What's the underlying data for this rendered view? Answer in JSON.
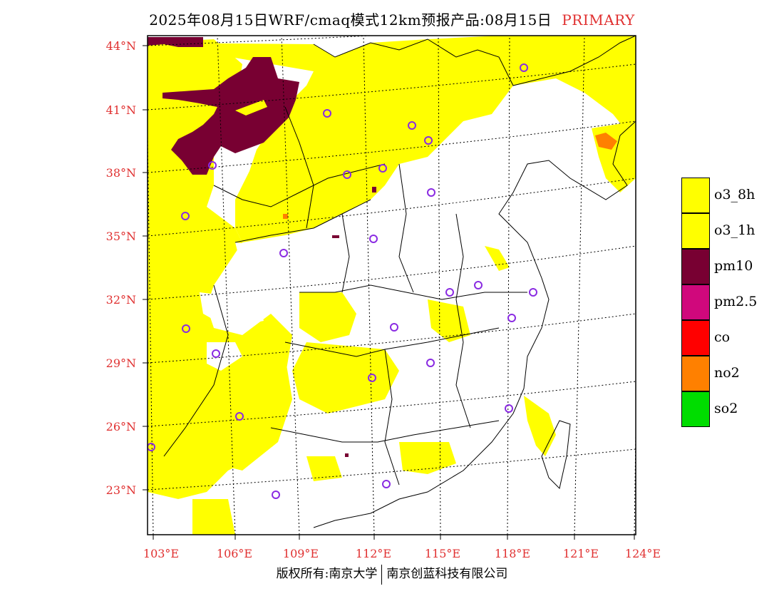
{
  "header": {
    "title": "2025年08月15日WRF/cmaq模式12km预报产品:08月15日",
    "tag": "PRIMARY"
  },
  "map": {
    "lat_labels": [
      "44°N",
      "41°N",
      "38°N",
      "35°N",
      "32°N",
      "29°N",
      "26°N",
      "23°N"
    ],
    "lon_labels": [
      "103°E",
      "106°E",
      "109°E",
      "112°E",
      "115°E",
      "118°E",
      "121°E",
      "124°E"
    ],
    "label_color": "#e03030",
    "fill_color": "#ffff00",
    "pm10_color": "#780032",
    "no2_color": "#ff8000",
    "marker_color": "#8a2be2"
  },
  "legend": {
    "items": [
      {
        "label": "o3_8h",
        "color": "#ffff00"
      },
      {
        "label": "o3_1h",
        "color": "#ffff00"
      },
      {
        "label": "pm10",
        "color": "#780032"
      },
      {
        "label": "pm2.5",
        "color": "#d0087c"
      },
      {
        "label": "co",
        "color": "#ff0000"
      },
      {
        "label": "no2",
        "color": "#ff8000"
      },
      {
        "label": "so2",
        "color": "#00dd00"
      }
    ]
  },
  "footer": {
    "copyright_left": "版权所有:南京大学",
    "copyright_right": "南京创蓝科技有限公司"
  }
}
